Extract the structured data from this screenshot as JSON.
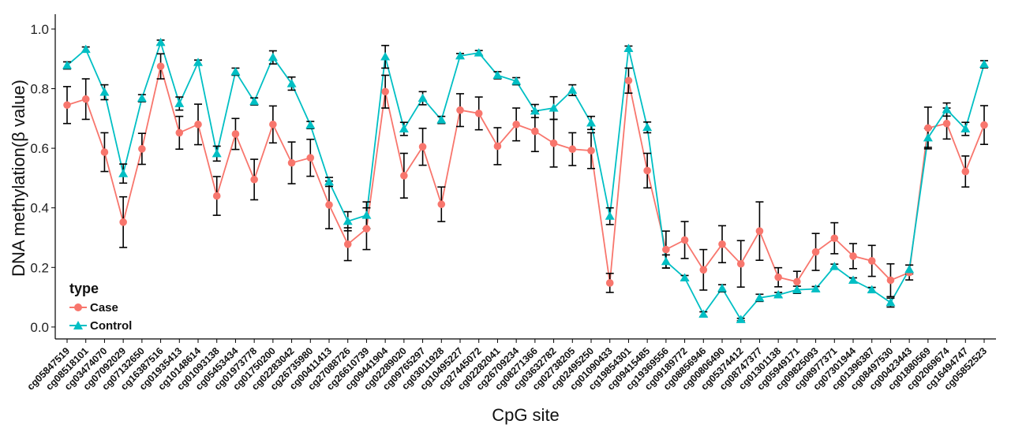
{
  "chart_data": {
    "type": "line",
    "xlabel": "CpG site",
    "ylabel": "DNA methylation(β value)",
    "ylim": [
      -0.04,
      1.05
    ],
    "yticks": [
      0.0,
      0.2,
      0.4,
      0.6,
      0.8,
      1.0
    ],
    "ytick_labels": [
      "0.0",
      "0.2",
      "0.4",
      "0.6",
      "0.8",
      "1.0"
    ],
    "grid": false,
    "legend": {
      "title": "type",
      "position": "bottom-left"
    },
    "categories": [
      "cg05847519",
      "cg08518101",
      "cg03474070",
      "cg07092029",
      "cg07132650",
      "cg16387516",
      "cg01935413",
      "cg10148614",
      "cg01093138",
      "cg05453434",
      "cg01973778",
      "cg01750200",
      "cg02283042",
      "cg26735980",
      "cg00411413",
      "cg27088726",
      "cg26610739",
      "cg09441904",
      "cg02289020",
      "cg09765297",
      "cg03011928",
      "cg10495227",
      "cg27445072",
      "cg02282041",
      "cg26709234",
      "cg08271366",
      "cg03632782",
      "cg02738205",
      "cg02495250",
      "cg01090433",
      "cg19854301",
      "cg09415485",
      "cg19369556",
      "cg09189772",
      "cg08856946",
      "cg00806490",
      "cg05374412",
      "cg08747377",
      "cg01301138",
      "cg05949171",
      "cg09825093",
      "cg08977371",
      "cg07301944",
      "cg01396387",
      "cg08497530",
      "cg00423443",
      "cg01880569",
      "cg02069674",
      "cg16494747",
      "cg05852523"
    ],
    "series": [
      {
        "name": "Case",
        "color": "#F8766D",
        "marker": "circle",
        "values": [
          0.745,
          0.765,
          0.587,
          0.352,
          0.598,
          0.875,
          0.652,
          0.68,
          0.44,
          0.648,
          0.495,
          0.68,
          0.551,
          0.568,
          0.41,
          0.278,
          0.33,
          0.79,
          0.508,
          0.605,
          0.412,
          0.728,
          0.717,
          0.607,
          0.68,
          0.657,
          0.617,
          0.597,
          0.592,
          0.148,
          0.827,
          0.525,
          0.26,
          0.292,
          0.192,
          0.278,
          0.212,
          0.322,
          0.167,
          0.152,
          0.252,
          0.298,
          0.238,
          0.222,
          0.157,
          0.183,
          0.668,
          0.683,
          0.522,
          0.678
        ],
        "err": [
          0.062,
          0.068,
          0.065,
          0.085,
          0.052,
          0.042,
          0.055,
          0.068,
          0.065,
          0.052,
          0.068,
          0.062,
          0.07,
          0.062,
          0.08,
          0.055,
          0.07,
          0.055,
          0.075,
          0.062,
          0.058,
          0.055,
          0.055,
          0.062,
          0.055,
          0.068,
          0.08,
          0.055,
          0.06,
          0.032,
          0.042,
          0.058,
          0.062,
          0.062,
          0.068,
          0.062,
          0.078,
          0.098,
          0.032,
          0.035,
          0.062,
          0.052,
          0.042,
          0.052,
          0.055,
          0.025,
          0.07,
          0.052,
          0.052,
          0.065
        ]
      },
      {
        "name": "Control",
        "color": "#00BFC4",
        "marker": "triangle",
        "values": [
          0.878,
          0.932,
          0.788,
          0.515,
          0.768,
          0.955,
          0.75,
          0.888,
          0.582,
          0.857,
          0.757,
          0.905,
          0.817,
          0.678,
          0.487,
          0.355,
          0.375,
          0.907,
          0.665,
          0.768,
          0.695,
          0.91,
          0.92,
          0.845,
          0.825,
          0.725,
          0.735,
          0.795,
          0.685,
          0.372,
          0.935,
          0.67,
          0.22,
          0.165,
          0.043,
          0.13,
          0.025,
          0.098,
          0.108,
          0.125,
          0.128,
          0.203,
          0.157,
          0.125,
          0.082,
          0.193,
          0.635,
          0.73,
          0.665,
          0.882
        ],
        "err": [
          0.012,
          0.008,
          0.025,
          0.032,
          0.012,
          0.008,
          0.022,
          0.008,
          0.025,
          0.012,
          0.012,
          0.022,
          0.022,
          0.012,
          0.015,
          0.032,
          0.045,
          0.038,
          0.022,
          0.022,
          0.012,
          0.008,
          0.008,
          0.012,
          0.012,
          0.022,
          0.038,
          0.018,
          0.022,
          0.028,
          0.008,
          0.018,
          0.022,
          0.008,
          0.008,
          0.012,
          0.004,
          0.012,
          0.008,
          0.012,
          0.008,
          0.008,
          0.008,
          0.008,
          0.015,
          0.015,
          0.032,
          0.022,
          0.022,
          0.012
        ]
      }
    ]
  }
}
